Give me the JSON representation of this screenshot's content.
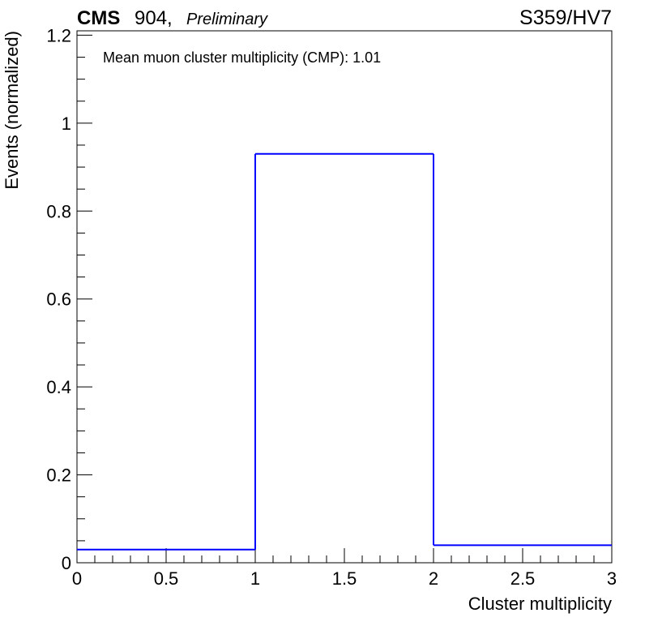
{
  "header": {
    "experiment": "CMS",
    "facility": "904,",
    "status": "Preliminary",
    "run_label": "S359/HV7"
  },
  "annotation": "Mean muon cluster multiplicity (CMP): 1.01",
  "chart_data": {
    "type": "histogram",
    "xlabel": "Cluster multiplicity",
    "ylabel": "Events (normalized)",
    "xlim": [
      0,
      3
    ],
    "ylim": [
      0,
      1.21
    ],
    "bins": [
      {
        "x_low": 0,
        "x_high": 1,
        "value": 0.03
      },
      {
        "x_low": 1,
        "x_high": 2,
        "value": 0.93
      },
      {
        "x_low": 2,
        "x_high": 3,
        "value": 0.04
      }
    ],
    "x_ticks": [
      "0",
      "0.5",
      "1",
      "1.5",
      "2",
      "2.5",
      "3"
    ],
    "y_ticks": [
      "0",
      "0.2",
      "0.4",
      "0.6",
      "0.8",
      "1",
      "1.2"
    ],
    "line_color": "#0000ff",
    "grid": false
  }
}
